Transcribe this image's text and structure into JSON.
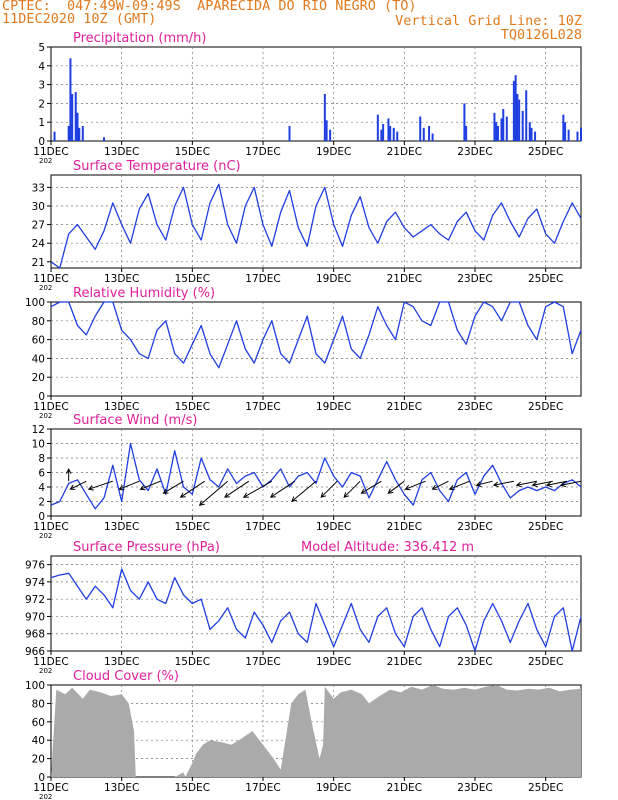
{
  "header": {
    "line1": "CPTEC:  047:49W-09:49S  APARECIDA DO RIO NEGRO (TO)",
    "line2": "11DEC2020 10Z (GMT)",
    "grid_note": "Vertical Grid Line: 10Z",
    "code": "TQ0126L028"
  },
  "colors": {
    "title": "#e0209a",
    "header": "#e07a1e",
    "line": "#1f3fe0",
    "bar": "#1f3fe0",
    "cloud": "#aaaaaa",
    "axis": "#000000"
  },
  "x_ticks": [
    "11DEC",
    "13DEC",
    "15DEC",
    "17DEC",
    "19DEC",
    "21DEC",
    "23DEC",
    "25DEC"
  ],
  "x_tick_note": "202",
  "chart_data": [
    {
      "id": "precip",
      "type": "bar",
      "title": "Precipitation (mm/h)",
      "ylim": [
        0,
        5
      ],
      "yticks": [
        0,
        1,
        2,
        3,
        4,
        5
      ],
      "x_unit": "days since 11DEC 10Z",
      "x_range": [
        0,
        15
      ],
      "x": [
        0.1,
        0.5,
        0.55,
        0.6,
        0.7,
        0.75,
        0.8,
        0.9,
        1.5,
        6.75,
        7.75,
        7.8,
        7.9,
        9.25,
        9.35,
        9.4,
        9.55,
        9.6,
        9.7,
        9.8,
        10.45,
        10.55,
        10.7,
        10.8,
        11.7,
        11.75,
        12.55,
        12.6,
        12.65,
        12.75,
        12.8,
        12.9,
        13.1,
        13.15,
        13.2,
        13.25,
        13.35,
        13.45,
        13.55,
        13.6,
        13.7,
        14.5,
        14.55,
        14.65,
        14.9,
        15.0
      ],
      "values": [
        0.5,
        0.8,
        4.4,
        2.5,
        2.6,
        1.5,
        0.7,
        0.8,
        0.2,
        0.8,
        2.5,
        1.1,
        0.6,
        1.4,
        0.6,
        0.9,
        1.2,
        0.8,
        0.7,
        0.5,
        1.3,
        0.7,
        0.8,
        0.4,
        2.0,
        0.8,
        1.5,
        1.0,
        0.8,
        1.2,
        1.7,
        1.3,
        3.2,
        3.5,
        2.5,
        2.2,
        1.6,
        2.7,
        1.0,
        0.7,
        0.5,
        1.4,
        1.0,
        0.6,
        0.5,
        0.7
      ]
    },
    {
      "id": "temp",
      "type": "line",
      "title": "Surface Temperature (nC)",
      "ylim": [
        20,
        35
      ],
      "yticks": [
        21,
        24,
        27,
        30,
        33
      ],
      "x_range": [
        0,
        15
      ],
      "x": [
        0,
        0.25,
        0.5,
        0.75,
        1,
        1.25,
        1.5,
        1.75,
        2,
        2.25,
        2.5,
        2.75,
        3,
        3.25,
        3.5,
        3.75,
        4,
        4.25,
        4.5,
        4.75,
        5,
        5.25,
        5.5,
        5.75,
        6,
        6.25,
        6.5,
        6.75,
        7,
        7.25,
        7.5,
        7.75,
        8,
        8.25,
        8.5,
        8.75,
        9,
        9.25,
        9.5,
        9.75,
        10,
        10.25,
        10.5,
        10.75,
        11,
        11.25,
        11.5,
        11.75,
        12,
        12.25,
        12.5,
        12.75,
        13,
        13.25,
        13.5,
        13.75,
        14,
        14.25,
        14.5,
        14.75,
        15
      ],
      "values": [
        21.0,
        20.0,
        25.5,
        27.0,
        25.0,
        23.0,
        26.0,
        30.5,
        27.0,
        24.0,
        29.5,
        32.0,
        27.0,
        24.5,
        30.0,
        33.0,
        27.0,
        24.5,
        30.5,
        33.5,
        27.0,
        24.0,
        30.0,
        33.0,
        27.0,
        23.5,
        29.0,
        32.5,
        26.5,
        23.5,
        30.0,
        33.0,
        27.0,
        23.5,
        28.5,
        31.5,
        26.5,
        24.0,
        27.5,
        29.0,
        26.5,
        25.0,
        26.0,
        27.0,
        25.5,
        24.5,
        27.5,
        29.0,
        26.0,
        24.5,
        28.5,
        30.5,
        27.5,
        25.0,
        28.0,
        29.5,
        25.5,
        24.0,
        27.5,
        30.5,
        28.0
      ]
    },
    {
      "id": "rh",
      "type": "line",
      "title": "Relative Humidity (%)",
      "ylim": [
        0,
        100
      ],
      "yticks": [
        0,
        20,
        40,
        60,
        80,
        100
      ],
      "x_range": [
        0,
        15
      ],
      "x": [
        0,
        0.25,
        0.5,
        0.75,
        1,
        1.25,
        1.5,
        1.75,
        2,
        2.25,
        2.5,
        2.75,
        3,
        3.25,
        3.5,
        3.75,
        4,
        4.25,
        4.5,
        4.75,
        5,
        5.25,
        5.5,
        5.75,
        6,
        6.25,
        6.5,
        6.75,
        7,
        7.25,
        7.5,
        7.75,
        8,
        8.25,
        8.5,
        8.75,
        9,
        9.25,
        9.5,
        9.75,
        10,
        10.25,
        10.5,
        10.75,
        11,
        11.25,
        11.5,
        11.75,
        12,
        12.25,
        12.5,
        12.75,
        13,
        13.25,
        13.5,
        13.75,
        14,
        14.25,
        14.5,
        14.75,
        15
      ],
      "values": [
        95,
        100,
        100,
        75,
        65,
        85,
        100,
        100,
        70,
        60,
        45,
        40,
        70,
        80,
        45,
        35,
        55,
        75,
        45,
        30,
        55,
        80,
        50,
        35,
        60,
        80,
        45,
        35,
        60,
        85,
        45,
        35,
        60,
        85,
        50,
        40,
        65,
        95,
        75,
        60,
        100,
        95,
        80,
        75,
        100,
        100,
        70,
        55,
        85,
        100,
        95,
        80,
        100,
        100,
        75,
        60,
        95,
        100,
        95,
        45,
        70
      ]
    },
    {
      "id": "wind",
      "type": "line",
      "title": "Surface Wind (m/s)",
      "ylim": [
        0,
        12
      ],
      "yticks": [
        0,
        2,
        4,
        6,
        8,
        10,
        12
      ],
      "x_range": [
        0,
        15
      ],
      "x": [
        0,
        0.25,
        0.5,
        0.75,
        1,
        1.25,
        1.5,
        1.75,
        2,
        2.25,
        2.5,
        2.75,
        3,
        3.25,
        3.5,
        3.75,
        4,
        4.25,
        4.5,
        4.75,
        5,
        5.25,
        5.5,
        5.75,
        6,
        6.25,
        6.5,
        6.75,
        7,
        7.25,
        7.5,
        7.75,
        8,
        8.25,
        8.5,
        8.75,
        9,
        9.25,
        9.5,
        9.75,
        10,
        10.25,
        10.5,
        10.75,
        11,
        11.25,
        11.5,
        11.75,
        12,
        12.25,
        12.5,
        12.75,
        13,
        13.25,
        13.5,
        13.75,
        14,
        14.25,
        14.5,
        14.75,
        15
      ],
      "values": [
        1.5,
        2.0,
        4.5,
        5.0,
        3.0,
        1.0,
        2.5,
        7.0,
        2.0,
        10.0,
        5.0,
        3.5,
        6.5,
        3.0,
        9.0,
        4.0,
        3.0,
        8.0,
        5.0,
        4.0,
        6.5,
        4.5,
        5.5,
        6.0,
        4.0,
        5.0,
        6.5,
        4.0,
        5.5,
        6.0,
        4.5,
        8.0,
        5.5,
        4.0,
        6.0,
        5.5,
        2.5,
        5.0,
        7.5,
        5.0,
        3.0,
        1.5,
        5.0,
        6.0,
        3.5,
        2.0,
        5.0,
        6.0,
        3.0,
        5.5,
        7.0,
        4.5,
        2.5,
        3.5,
        4.0,
        3.5,
        4.0,
        3.5,
        4.5,
        5.0,
        4.0
      ],
      "arrows_u": [
        0,
        -2,
        -3,
        -2.5,
        -2.5,
        -2.5,
        -3,
        -3.5,
        -3,
        -3.5,
        -3,
        -3,
        -2,
        -2,
        -2.5,
        -2,
        -2.5,
        -2,
        -2.5,
        -2,
        -2.5,
        -2.5,
        -2.5,
        -2.5,
        -2.5
      ],
      "arrows_v": [
        1.5,
        -1,
        -1,
        -1,
        -1,
        -1.5,
        -2,
        -3,
        -2,
        -2,
        -2,
        -2.5,
        -2,
        -2,
        -1.5,
        -1.5,
        -1,
        -1,
        -1,
        -0.5,
        -0.5,
        -0.5,
        -0.5,
        -0.5,
        -0.5
      ],
      "arrows_x": [
        0.5,
        1.0,
        1.75,
        2.5,
        3.1,
        3.75,
        4.35,
        5.0,
        5.6,
        6.25,
        6.9,
        7.5,
        8.1,
        8.75,
        9.35,
        10.0,
        10.6,
        11.25,
        11.85,
        12.5,
        13.1,
        13.75,
        14.2,
        14.6,
        15.0
      ]
    },
    {
      "id": "pres",
      "type": "line",
      "title": "Surface Pressure (hPa)",
      "subtitle": "Model Altitude: 336.412 m",
      "ylim": [
        966,
        977
      ],
      "yticks": [
        966,
        968,
        970,
        972,
        974,
        976
      ],
      "x_range": [
        0,
        15
      ],
      "x": [
        0,
        0.25,
        0.5,
        0.75,
        1,
        1.25,
        1.5,
        1.75,
        2,
        2.25,
        2.5,
        2.75,
        3,
        3.25,
        3.5,
        3.75,
        4,
        4.25,
        4.5,
        4.75,
        5,
        5.25,
        5.5,
        5.75,
        6,
        6.25,
        6.5,
        6.75,
        7,
        7.25,
        7.5,
        7.75,
        8,
        8.25,
        8.5,
        8.75,
        9,
        9.25,
        9.5,
        9.75,
        10,
        10.25,
        10.5,
        10.75,
        11,
        11.25,
        11.5,
        11.75,
        12,
        12.25,
        12.5,
        12.75,
        13,
        13.25,
        13.5,
        13.75,
        14,
        14.25,
        14.5,
        14.75,
        15
      ],
      "values": [
        974.5,
        974.8,
        975.0,
        973.5,
        972.0,
        973.5,
        972.5,
        971.0,
        975.5,
        973.0,
        972.0,
        974.0,
        972.0,
        971.5,
        974.5,
        972.5,
        971.5,
        972.0,
        968.5,
        969.5,
        971.0,
        968.5,
        967.5,
        970.5,
        969.0,
        967.0,
        969.5,
        970.5,
        968.0,
        967.0,
        971.5,
        969.0,
        966.5,
        969.0,
        971.5,
        968.5,
        967.0,
        970.0,
        971.0,
        968.0,
        966.5,
        970.0,
        971.0,
        968.5,
        966.5,
        970.0,
        971.0,
        969.0,
        966.0,
        969.5,
        971.5,
        969.5,
        967.0,
        969.5,
        971.5,
        968.5,
        966.5,
        970.0,
        971.0,
        966.0,
        970.0
      ]
    },
    {
      "id": "cloud",
      "type": "area",
      "title": "Cloud Cover (%)",
      "ylim": [
        0,
        100
      ],
      "yticks": [
        0,
        20,
        40,
        60,
        80,
        100
      ],
      "x_range": [
        0,
        15
      ],
      "x": [
        0,
        0.15,
        0.4,
        0.6,
        0.9,
        1.1,
        1.4,
        1.7,
        2.0,
        2.2,
        2.35,
        2.4,
        3.5,
        3.75,
        3.8,
        4.0,
        4.1,
        4.3,
        4.5,
        4.8,
        5.1,
        5.4,
        5.7,
        6.0,
        6.3,
        6.5,
        6.8,
        7.0,
        7.2,
        7.4,
        7.6,
        7.7,
        7.75,
        8.0,
        8.2,
        8.5,
        8.8,
        9.0,
        9.3,
        9.6,
        9.9,
        10.2,
        10.5,
        10.8,
        11.1,
        11.4,
        11.7,
        12.0,
        12.3,
        12.6,
        12.9,
        13.2,
        13.5,
        13.8,
        14.1,
        14.4,
        14.7,
        15.0
      ],
      "values": [
        0,
        95,
        90,
        97,
        85,
        95,
        92,
        88,
        90,
        80,
        50,
        0,
        0,
        5,
        0,
        15,
        25,
        35,
        40,
        38,
        35,
        42,
        50,
        35,
        20,
        8,
        80,
        90,
        95,
        55,
        20,
        35,
        98,
        85,
        92,
        95,
        90,
        80,
        88,
        95,
        92,
        98,
        95,
        100,
        96,
        95,
        97,
        95,
        98,
        100,
        95,
        94,
        96,
        95,
        97,
        93,
        95,
        96
      ]
    }
  ]
}
